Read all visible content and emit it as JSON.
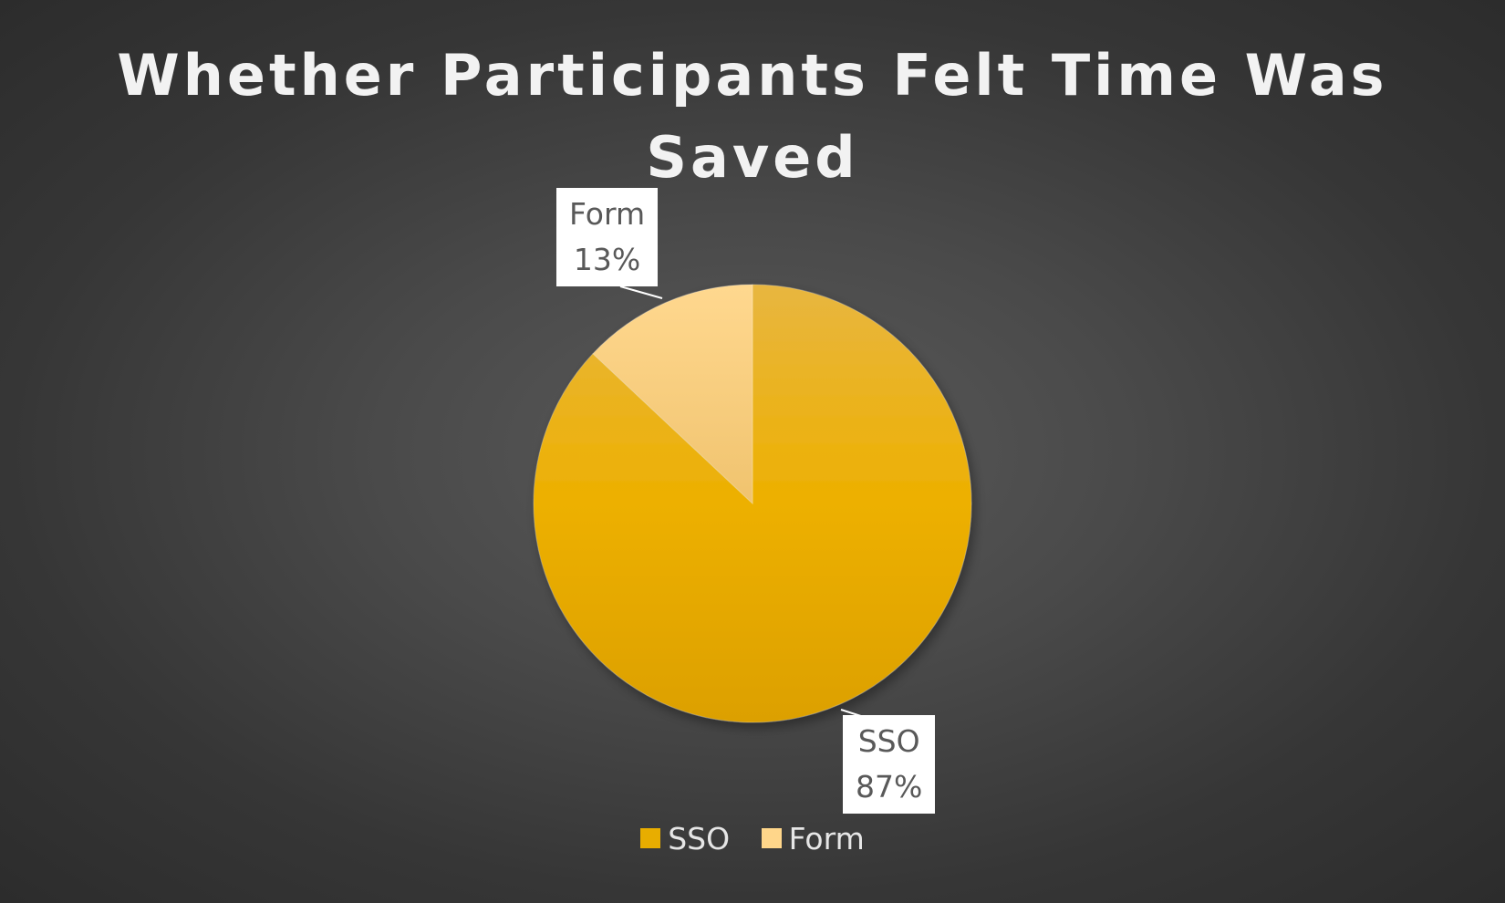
{
  "chart_data": {
    "type": "pie",
    "title": "Whether Participants Felt Time Was Saved",
    "categories": [
      "SSO",
      "Form"
    ],
    "values": [
      87,
      13
    ],
    "value_unit": "%",
    "data_labels": [
      {
        "category": "SSO",
        "value": "87%"
      },
      {
        "category": "Form",
        "value": "13%"
      }
    ],
    "colors": [
      "#e8ad00",
      "#ffd68a"
    ],
    "legend": {
      "placement": "bottom",
      "entries": [
        "SSO",
        "Form"
      ]
    }
  }
}
